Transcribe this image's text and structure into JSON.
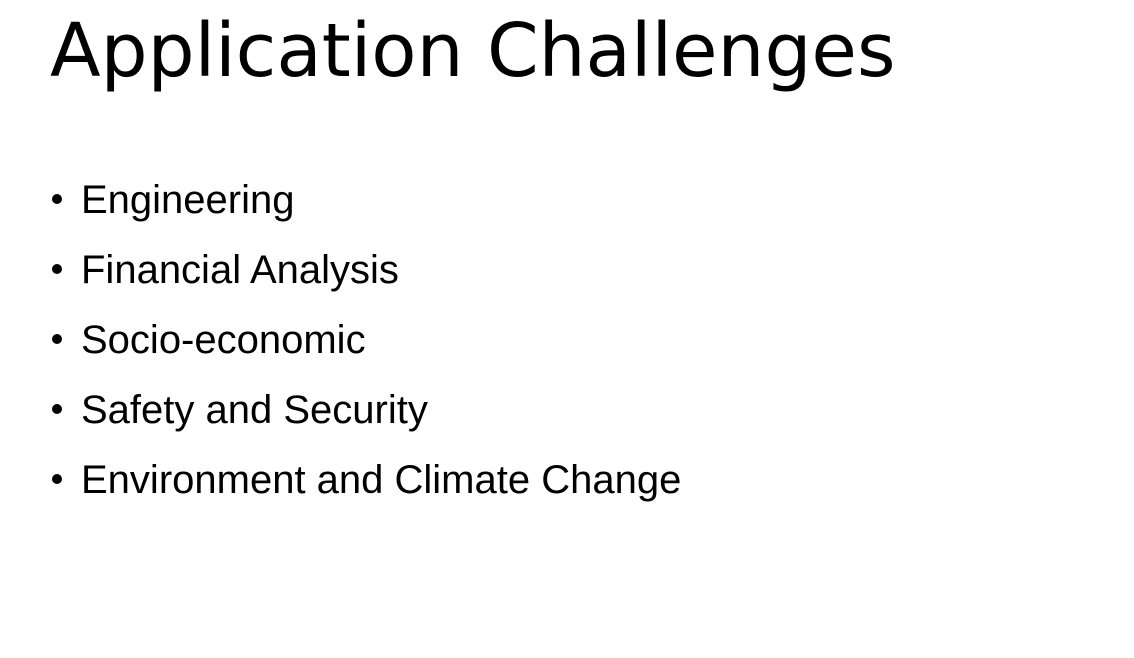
{
  "slide": {
    "title": "Application Challenges",
    "bullets": [
      "Engineering",
      "Financial Analysis",
      "Socio-economic",
      "Safety and Security",
      "Environment and Climate Change"
    ]
  },
  "colors": {
    "background": "#ffffff",
    "text": "#000000"
  }
}
